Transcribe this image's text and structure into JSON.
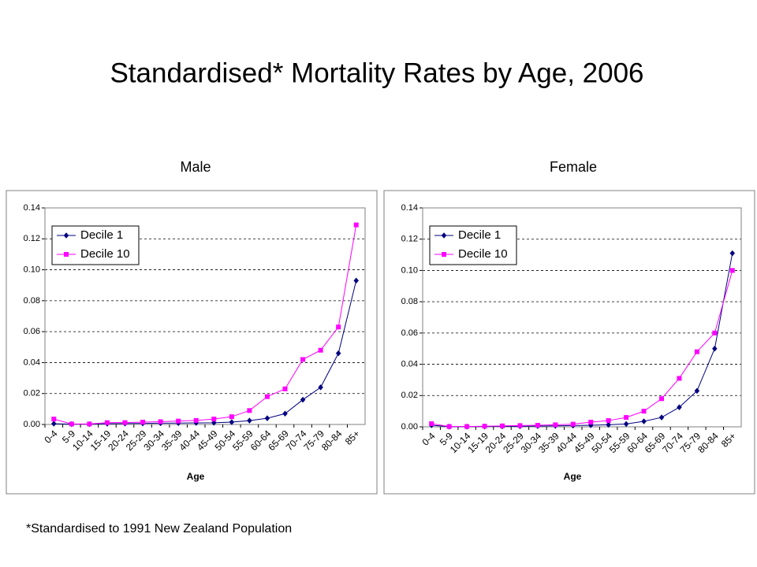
{
  "title": "Standardised* Mortality Rates by Age, 2006",
  "footnote": "*Standardised to 1991 New Zealand Population",
  "chart_data": [
    {
      "type": "line",
      "title": "Male",
      "x_label": "Age",
      "categories": [
        "0-4",
        "5-9",
        "10-14",
        "15-19",
        "20-24",
        "25-29",
        "30-34",
        "35-39",
        "40-44",
        "45-49",
        "50-54",
        "55-59",
        "60-64",
        "65-69",
        "70-74",
        "75-79",
        "80-84",
        "85+"
      ],
      "series": [
        {
          "name": "Decile 1",
          "color": "#000080",
          "marker": "diamond",
          "values": [
            0.0005,
            0.0002,
            0.0002,
            0.0005,
            0.0006,
            0.0007,
            0.0008,
            0.0009,
            0.001,
            0.0011,
            0.0015,
            0.0025,
            0.004,
            0.007,
            0.016,
            0.024,
            0.046,
            0.093
          ]
        },
        {
          "name": "Decile 10",
          "color": "#ff00ff",
          "marker": "square",
          "values": [
            0.0035,
            0.0003,
            0.0003,
            0.0012,
            0.0012,
            0.0015,
            0.0018,
            0.0022,
            0.0026,
            0.0035,
            0.005,
            0.009,
            0.018,
            0.023,
            0.042,
            0.048,
            0.063,
            0.129
          ]
        }
      ],
      "ylim": [
        0,
        0.14
      ],
      "yticks": [
        {
          "value": 0,
          "label": "0.00"
        },
        {
          "value": 0.02,
          "label": "0.02"
        },
        {
          "value": 0.04,
          "label": "0.04"
        },
        {
          "value": 0.06,
          "label": "0.06"
        },
        {
          "value": 0.08,
          "label": "0.08"
        },
        {
          "value": 0.1,
          "label": "0.10"
        },
        {
          "value": 0.12,
          "label": "0.12"
        },
        {
          "value": 0.14,
          "label": "0.14"
        }
      ],
      "grid": true,
      "legend": "upper left"
    },
    {
      "type": "line",
      "title": "Female",
      "x_label": "Age",
      "categories": [
        "0-4",
        "5-9",
        "10-14",
        "15-19",
        "20-24",
        "25-29",
        "30-34",
        "35-39",
        "40-44",
        "45-49",
        "50-54",
        "55-59",
        "60-64",
        "65-69",
        "70-74",
        "75-79",
        "80-84",
        "85+"
      ],
      "series": [
        {
          "name": "Decile 1",
          "color": "#000080",
          "marker": "diamond",
          "values": [
            0.001,
            0.0001,
            0.0001,
            0.0002,
            0.0003,
            0.0004,
            0.0005,
            0.0006,
            0.0008,
            0.001,
            0.0013,
            0.0018,
            0.0035,
            0.006,
            0.0125,
            0.023,
            0.05,
            0.111
          ]
        },
        {
          "name": "Decile 10",
          "color": "#ff00ff",
          "marker": "square",
          "values": [
            0.002,
            0.0002,
            0.0002,
            0.0004,
            0.0006,
            0.0008,
            0.001,
            0.0013,
            0.0017,
            0.003,
            0.004,
            0.006,
            0.01,
            0.018,
            0.031,
            0.048,
            0.06,
            0.1
          ]
        }
      ],
      "ylim": [
        0,
        0.14
      ],
      "yticks": [
        {
          "value": 0,
          "label": "0.00"
        },
        {
          "value": 0.02,
          "label": "0.02"
        },
        {
          "value": 0.04,
          "label": "0.04"
        },
        {
          "value": 0.06,
          "label": "0.06"
        },
        {
          "value": 0.08,
          "label": "0.08"
        },
        {
          "value": 0.1,
          "label": "0.10"
        },
        {
          "value": 0.12,
          "label": "0.12"
        },
        {
          "value": 0.14,
          "label": "0.14"
        }
      ],
      "grid": true,
      "legend": "upper left"
    }
  ]
}
